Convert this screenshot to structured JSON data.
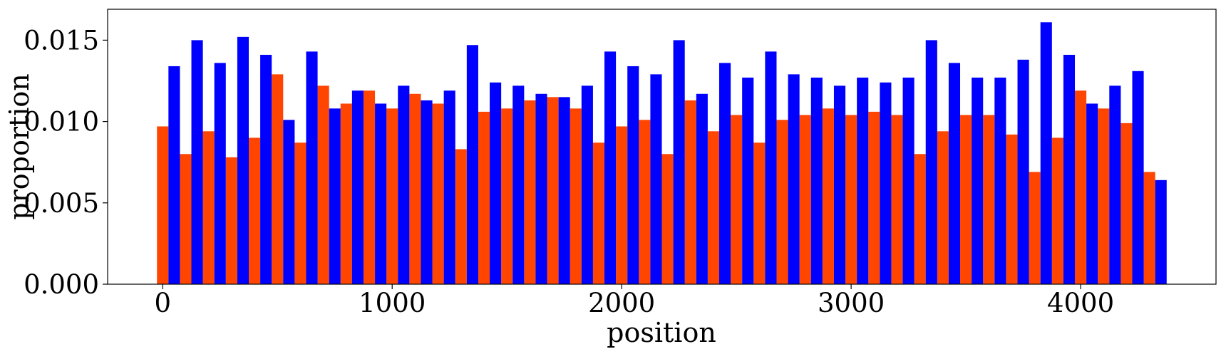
{
  "chart_data": {
    "type": "bar",
    "title": "",
    "xlabel": "position",
    "ylabel": "proportion",
    "xlim": [
      -240,
      4590
    ],
    "ylim": [
      0,
      0.0169
    ],
    "bin_width": 100,
    "bar_width": 50,
    "x_ticks": [
      0,
      1000,
      2000,
      3000,
      4000
    ],
    "x_tick_labels": [
      "0",
      "1000",
      "2000",
      "3000",
      "4000"
    ],
    "y_ticks": [
      0,
      0.005,
      0.01,
      0.015
    ],
    "y_tick_labels": [
      "0.000",
      "0.005",
      "0.010",
      "0.015"
    ],
    "series": [
      {
        "name": "orange",
        "color": "#ff4500",
        "offset": 0,
        "values": [
          0.0097,
          0.008,
          0.0094,
          0.0078,
          0.009,
          0.0129,
          0.0087,
          0.0122,
          0.0111,
          0.0119,
          0.0108,
          0.0117,
          0.0111,
          0.0083,
          0.0106,
          0.0108,
          0.0113,
          0.0115,
          0.0108,
          0.0087,
          0.0097,
          0.0101,
          0.008,
          0.0113,
          0.0094,
          0.0104,
          0.0087,
          0.0101,
          0.0104,
          0.0108,
          0.0104,
          0.0106,
          0.0104,
          0.008,
          0.0094,
          0.0104,
          0.0104,
          0.0092,
          0.0069,
          0.009,
          0.0119,
          0.0108,
          0.0099,
          0.0069
        ]
      },
      {
        "name": "blue",
        "color": "#0000ff",
        "offset": 50,
        "values": [
          0.0134,
          0.015,
          0.0136,
          0.0152,
          0.0141,
          0.0101,
          0.0143,
          0.0108,
          0.0119,
          0.0111,
          0.0122,
          0.0113,
          0.0119,
          0.0147,
          0.0124,
          0.0122,
          0.0117,
          0.0115,
          0.0122,
          0.0143,
          0.0134,
          0.0129,
          0.015,
          0.0117,
          0.0136,
          0.0127,
          0.0143,
          0.0129,
          0.0127,
          0.0122,
          0.0127,
          0.0124,
          0.0127,
          0.015,
          0.0136,
          0.0127,
          0.0127,
          0.0138,
          0.0161,
          0.0141,
          0.0111,
          0.0122,
          0.0131,
          0.0064
        ]
      }
    ]
  }
}
